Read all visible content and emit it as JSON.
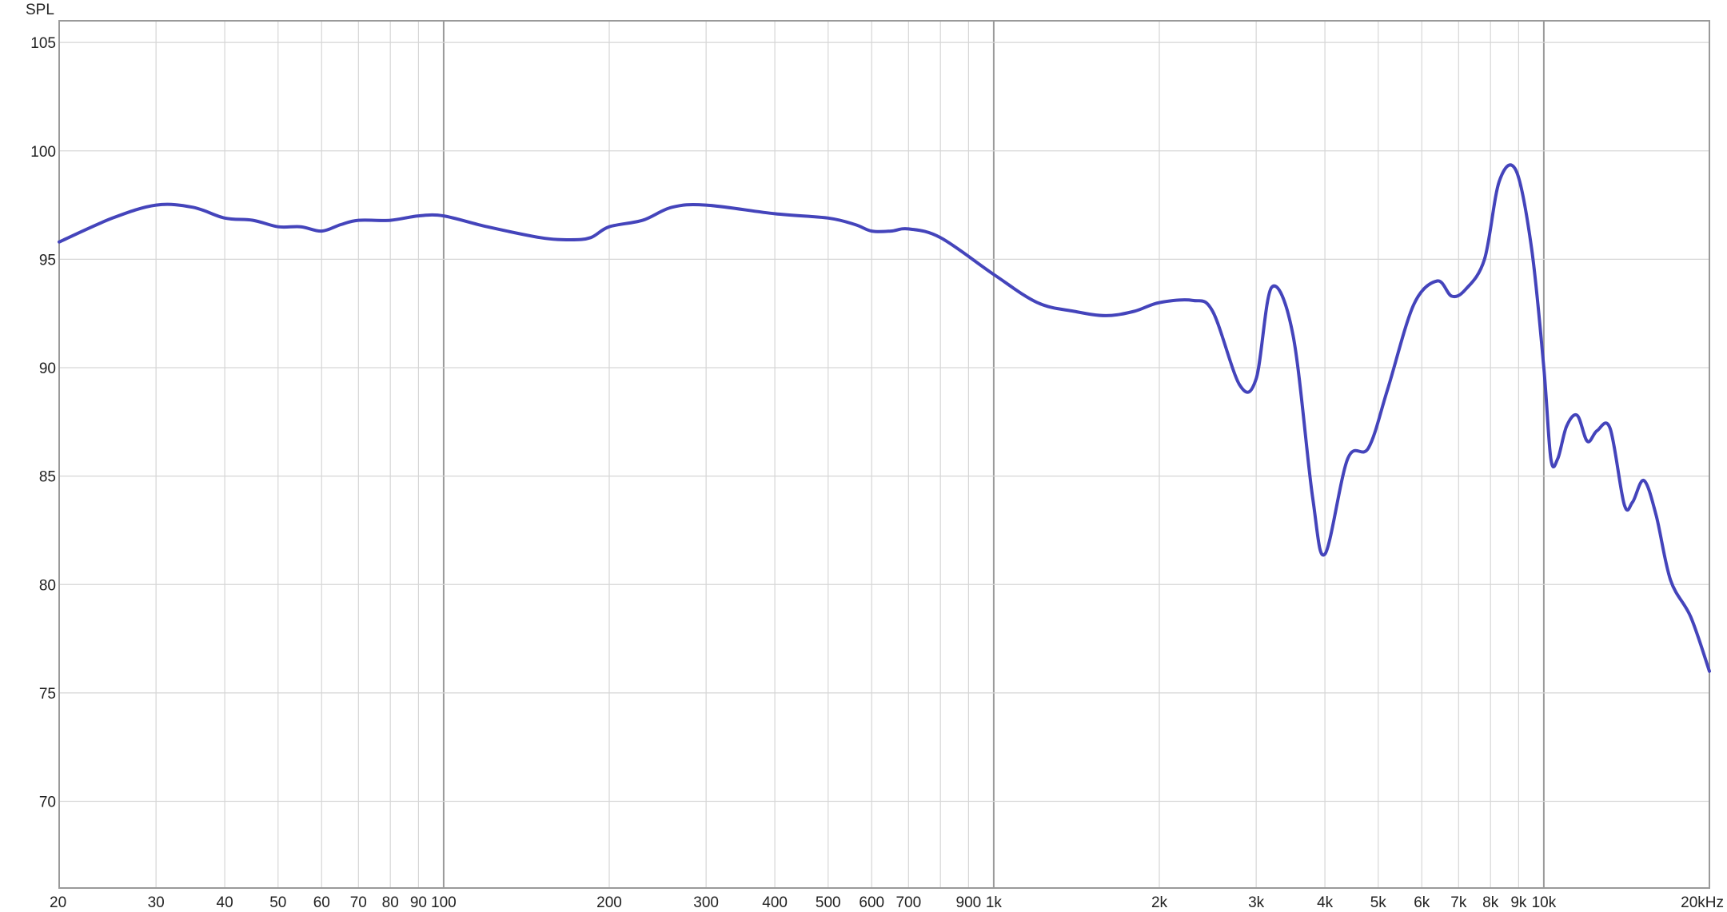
{
  "chart_data": {
    "type": "line",
    "ylabel": "SPL",
    "x_scale": "log",
    "xlim": [
      20,
      20000
    ],
    "ylim": [
      66,
      106
    ],
    "grid": true,
    "y_ticks": [
      {
        "value": 70,
        "label": "70"
      },
      {
        "value": 75,
        "label": "75"
      },
      {
        "value": 80,
        "label": "80"
      },
      {
        "value": 85,
        "label": "85"
      },
      {
        "value": 90,
        "label": "90"
      },
      {
        "value": 95,
        "label": "95"
      },
      {
        "value": 100,
        "label": "100"
      },
      {
        "value": 105,
        "label": "105"
      }
    ],
    "x_ticks": [
      {
        "value": 20,
        "label": "20"
      },
      {
        "value": 30,
        "label": "30"
      },
      {
        "value": 40,
        "label": "40"
      },
      {
        "value": 50,
        "label": "50"
      },
      {
        "value": 60,
        "label": "60"
      },
      {
        "value": 70,
        "label": "70"
      },
      {
        "value": 80,
        "label": "80"
      },
      {
        "value": 90,
        "label": "90"
      },
      {
        "value": 100,
        "label": "100"
      },
      {
        "value": 200,
        "label": "200"
      },
      {
        "value": 300,
        "label": "300"
      },
      {
        "value": 400,
        "label": "400"
      },
      {
        "value": 500,
        "label": "500"
      },
      {
        "value": 600,
        "label": "600"
      },
      {
        "value": 700,
        "label": "700"
      },
      {
        "value": 900,
        "label": "900"
      },
      {
        "value": 1000,
        "label": "1k"
      },
      {
        "value": 2000,
        "label": "2k"
      },
      {
        "value": 3000,
        "label": "3k"
      },
      {
        "value": 4000,
        "label": "4k"
      },
      {
        "value": 5000,
        "label": "5k"
      },
      {
        "value": 6000,
        "label": "6k"
      },
      {
        "value": 7000,
        "label": "7k"
      },
      {
        "value": 8000,
        "label": "8k"
      },
      {
        "value": 9000,
        "label": "9k"
      },
      {
        "value": 10000,
        "label": "10k"
      },
      {
        "value": 20000,
        "label": "20kHz"
      }
    ],
    "x_gridlines": [
      20,
      30,
      40,
      50,
      60,
      70,
      80,
      90,
      100,
      200,
      300,
      400,
      500,
      600,
      700,
      800,
      900,
      1000,
      2000,
      3000,
      4000,
      5000,
      6000,
      7000,
      8000,
      9000,
      10000,
      20000
    ],
    "x_major_gridlines": [
      100,
      1000,
      10000
    ],
    "series_color": "#4444bb",
    "series": [
      {
        "x": [
          20,
          25,
          30,
          35,
          40,
          45,
          50,
          55,
          60,
          65,
          70,
          80,
          90,
          100,
          120,
          150,
          170,
          185,
          200,
          230,
          260,
          300,
          400,
          500,
          560,
          600,
          650,
          700,
          800,
          1000,
          1200,
          1400,
          1600,
          1800,
          2000,
          2300,
          2500,
          2800,
          3000,
          3200,
          3500,
          3800,
          4000,
          4400,
          4800,
          5200,
          5800,
          6400,
          6800,
          7200,
          7800,
          8300,
          8900,
          9500,
          10000,
          10300,
          10600,
          11000,
          11500,
          12000,
          12500,
          13200,
          14000,
          14500,
          15200,
          16000,
          17000,
          18500,
          20000
        ],
        "y": [
          95.8,
          96.9,
          97.5,
          97.4,
          96.9,
          96.8,
          96.5,
          96.5,
          96.3,
          96.6,
          96.8,
          96.8,
          97.0,
          97.0,
          96.5,
          96.0,
          95.9,
          96.0,
          96.5,
          96.8,
          97.4,
          97.5,
          97.1,
          96.9,
          96.6,
          96.3,
          96.3,
          96.4,
          96.0,
          94.3,
          93.0,
          92.6,
          92.4,
          92.6,
          93.0,
          93.1,
          92.6,
          89.2,
          89.5,
          93.7,
          91.5,
          84.0,
          81.4,
          85.8,
          86.3,
          89.0,
          92.9,
          94.0,
          93.3,
          93.6,
          95.0,
          98.6,
          99.1,
          95.5,
          90.0,
          85.8,
          85.8,
          87.3,
          87.8,
          86.6,
          87.1,
          87.2,
          83.7,
          83.8,
          84.8,
          83.2,
          80.2,
          78.5,
          76.0
        ]
      }
    ]
  }
}
